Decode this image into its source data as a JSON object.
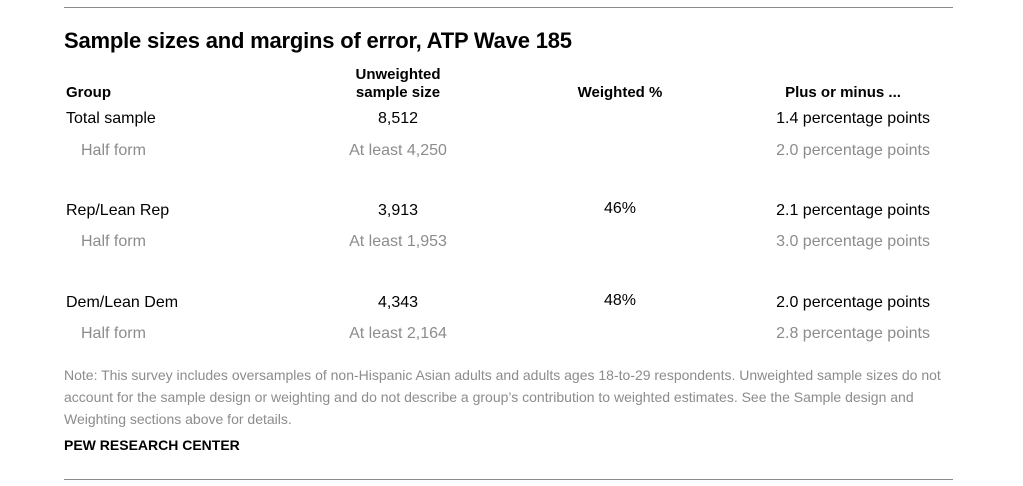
{
  "title": "Sample sizes and margins of error, ATP Wave 185",
  "headers": {
    "group": "Group",
    "unweighted_line1": "Unweighted",
    "unweighted_line2": "sample size",
    "weighted": "Weighted %",
    "moe": "Plus or minus ..."
  },
  "rows": [
    {
      "group": "Total sample",
      "size": "8,512",
      "weighted": "",
      "moe": "1.4 percentage points",
      "sub": false
    },
    {
      "group": "Half form",
      "size": "At least 4,250",
      "weighted": "",
      "moe": "2.0 percentage points",
      "sub": true
    },
    {
      "group": "Rep/Lean Rep",
      "size": "3,913",
      "weighted": "46%",
      "moe": "2.1 percentage points",
      "sub": false
    },
    {
      "group": "Half form",
      "size": "At least 1,953",
      "weighted": "",
      "moe": "3.0 percentage points",
      "sub": true
    },
    {
      "group": "Dem/Lean Dem",
      "size": "4,343",
      "weighted": "48%",
      "moe": "2.0 percentage points",
      "sub": false
    },
    {
      "group": "Half form",
      "size": "At least 2,164",
      "weighted": "",
      "moe": "2.8 percentage points",
      "sub": true
    }
  ],
  "note": "Note: This survey includes oversamples of non-Hispanic Asian adults and adults ages 18-to-29 respondents. Unweighted sample sizes do not account for the sample design or weighting and do not describe a group’s contribution to weighted estimates. See the Sample design and Weighting sections above for details.",
  "source": "PEW RESEARCH CENTER"
}
